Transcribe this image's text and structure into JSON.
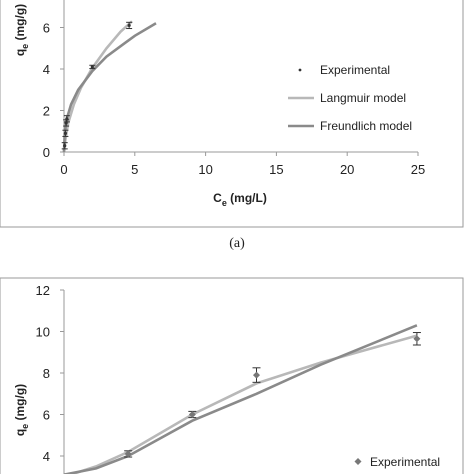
{
  "chart_data": [
    {
      "type": "line",
      "panel_label": "(a)",
      "xlabel_main": "C",
      "xlabel_sub": "e",
      "xlabel_unit": " (mg/L)",
      "ylabel_main": "q",
      "ylabel_sub": "e",
      "ylabel_unit": " (mg/g)",
      "xlim": [
        0,
        25
      ],
      "ylim": [
        0,
        8
      ],
      "x_ticks": [
        0,
        5,
        10,
        15,
        20,
        25
      ],
      "y_ticks": [
        0,
        2,
        4,
        6
      ],
      "legend": [
        "Experimental",
        "Langmuir model",
        "Freundlich model"
      ],
      "legend_position": "right",
      "series": [
        {
          "name": "Experimental",
          "marker": "point-with-error-bar",
          "points": [
            {
              "x": 0.05,
              "y": 0.3,
              "err": 0.15
            },
            {
              "x": 0.1,
              "y": 0.9,
              "err": 0.15
            },
            {
              "x": 0.15,
              "y": 1.4,
              "err": 0.15
            },
            {
              "x": 0.2,
              "y": 1.6,
              "err": 0.15
            },
            {
              "x": 2,
              "y": 4.1,
              "err": 0.08
            },
            {
              "x": 4.6,
              "y": 6.1,
              "err": 0.15
            }
          ]
        },
        {
          "name": "Langmuir model",
          "points": [
            {
              "x": 0,
              "y": 0
            },
            {
              "x": 0.1,
              "y": 0.6
            },
            {
              "x": 0.3,
              "y": 1.4
            },
            {
              "x": 0.7,
              "y": 2.3
            },
            {
              "x": 1.2,
              "y": 3.1
            },
            {
              "x": 2,
              "y": 4.05
            },
            {
              "x": 3,
              "y": 5.0
            },
            {
              "x": 4,
              "y": 5.8
            },
            {
              "x": 4.8,
              "y": 6.3
            }
          ]
        },
        {
          "name": "Freundlich model",
          "points": [
            {
              "x": 0,
              "y": 0
            },
            {
              "x": 0.05,
              "y": 0.9
            },
            {
              "x": 0.2,
              "y": 1.6
            },
            {
              "x": 0.5,
              "y": 2.3
            },
            {
              "x": 1,
              "y": 3.0
            },
            {
              "x": 2,
              "y": 3.9
            },
            {
              "x": 3,
              "y": 4.6
            },
            {
              "x": 4,
              "y": 5.1
            },
            {
              "x": 5,
              "y": 5.6
            },
            {
              "x": 6.5,
              "y": 6.2
            }
          ]
        }
      ]
    },
    {
      "type": "line",
      "ylabel_main": "q",
      "ylabel_sub": "e",
      "ylabel_unit": " (mg/g)",
      "ylim": [
        3,
        12
      ],
      "y_ticks": [
        4,
        6,
        8,
        10,
        12
      ],
      "legend": [
        "Experimental"
      ],
      "series": [
        {
          "name": "Experimental",
          "marker": "diamond-with-error-bar",
          "points": [
            {
              "x": 1,
              "y": 4.1,
              "err": 0.15
            },
            {
              "x": 2,
              "y": 6.0,
              "err": 0.15
            },
            {
              "x": 3,
              "y": 7.9,
              "err": 0.35
            },
            {
              "x": 5.5,
              "y": 9.65,
              "err": 0.3
            }
          ]
        },
        {
          "name": "",
          "points": [
            {
              "x": 0,
              "y": 3.0
            },
            {
              "x": 0.5,
              "y": 3.5
            },
            {
              "x": 1,
              "y": 4.2
            },
            {
              "x": 2,
              "y": 6.0
            },
            {
              "x": 3,
              "y": 7.5
            },
            {
              "x": 4,
              "y": 8.5
            },
            {
              "x": 5.5,
              "y": 9.8
            }
          ]
        },
        {
          "name": "",
          "points": [
            {
              "x": 0,
              "y": 3.1
            },
            {
              "x": 0.5,
              "y": 3.4
            },
            {
              "x": 1,
              "y": 4.0
            },
            {
              "x": 2,
              "y": 5.7
            },
            {
              "x": 3,
              "y": 7.0
            },
            {
              "x": 4,
              "y": 8.4
            },
            {
              "x": 5.5,
              "y": 10.3
            }
          ]
        }
      ]
    }
  ]
}
